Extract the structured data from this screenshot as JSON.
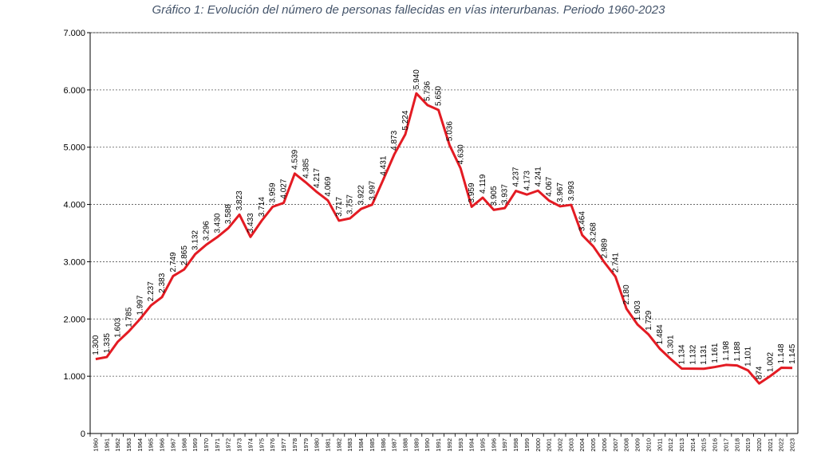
{
  "chart_data": {
    "type": "line",
    "title": "Gráfico 1: Evolución del número de personas fallecidas en vías interurbanas. Periodo 1960-2023",
    "xlabel": "",
    "ylabel": "",
    "ylim": [
      0,
      7000
    ],
    "yticks": [
      "0",
      "1.000",
      "2.000",
      "3.000",
      "4.000",
      "5.000",
      "6.000",
      "7.000"
    ],
    "grid": "horizontal-dotted",
    "line_color": "#e31b23",
    "categories": [
      "1960",
      "1961",
      "1962",
      "1963",
      "1964",
      "1965",
      "1966",
      "1967",
      "1968",
      "1969",
      "1970",
      "1971",
      "1972",
      "1973",
      "1974",
      "1975",
      "1976",
      "1977",
      "1978",
      "1979",
      "1980",
      "1981",
      "1982",
      "1983",
      "1984",
      "1985",
      "1986",
      "1987",
      "1988",
      "1989",
      "1990",
      "1991",
      "1992",
      "1993",
      "1994",
      "1995",
      "1996",
      "1997",
      "1998",
      "1999",
      "2000",
      "2001",
      "2002",
      "2003",
      "2004",
      "2005",
      "2006",
      "2007",
      "2008",
      "2009",
      "2010",
      "2011",
      "2012",
      "2013",
      "2014",
      "2015",
      "2016",
      "2017",
      "2018",
      "2019",
      "2020",
      "2021",
      "2022",
      "2023"
    ],
    "values": [
      1300,
      1335,
      1603,
      1785,
      1997,
      2237,
      2383,
      2749,
      2865,
      3132,
      3296,
      3430,
      3588,
      3823,
      3433,
      3714,
      3959,
      4027,
      4539,
      4385,
      4217,
      4069,
      3717,
      3757,
      3922,
      3997,
      4431,
      4873,
      5224,
      5940,
      5736,
      5650,
      5036,
      4630,
      3959,
      4119,
      3905,
      3937,
      4237,
      4173,
      4241,
      4067,
      3967,
      3993,
      3464,
      3268,
      2989,
      2741,
      2180,
      1903,
      1729,
      1484,
      1301,
      1134,
      1132,
      1131,
      1161,
      1198,
      1188,
      1101,
      874,
      1002,
      1148,
      1145
    ],
    "labels": [
      "1.300",
      "1.335",
      "1.603",
      "1.785",
      "1.997",
      "2.237",
      "2.383",
      "2.749",
      "2.865",
      "3.132",
      "3.296",
      "3.430",
      "3.588",
      "3.823",
      "3.433",
      "3.714",
      "3.959",
      "4.027",
      "4.539",
      "4.385",
      "4.217",
      "4.069",
      "3.717",
      "3.757",
      "3.922",
      "3.997",
      "4.431",
      "4.873",
      "5.224",
      "5.940",
      "5.736",
      "5.650",
      "5.036",
      "4.630",
      "3.959",
      "4.119",
      "3.905",
      "3.937",
      "4.237",
      "4.173",
      "4.241",
      "4.067",
      "3.967",
      "3.993",
      "3.464",
      "3.268",
      "2.989",
      "2.741",
      "2.180",
      "1.903",
      "1.729",
      "1.484",
      "1.301",
      "1.134",
      "1.132",
      "1.131",
      "1.161",
      "1.198",
      "1.188",
      "1.101",
      "874",
      "1.002",
      "1.148",
      "1.145"
    ]
  }
}
